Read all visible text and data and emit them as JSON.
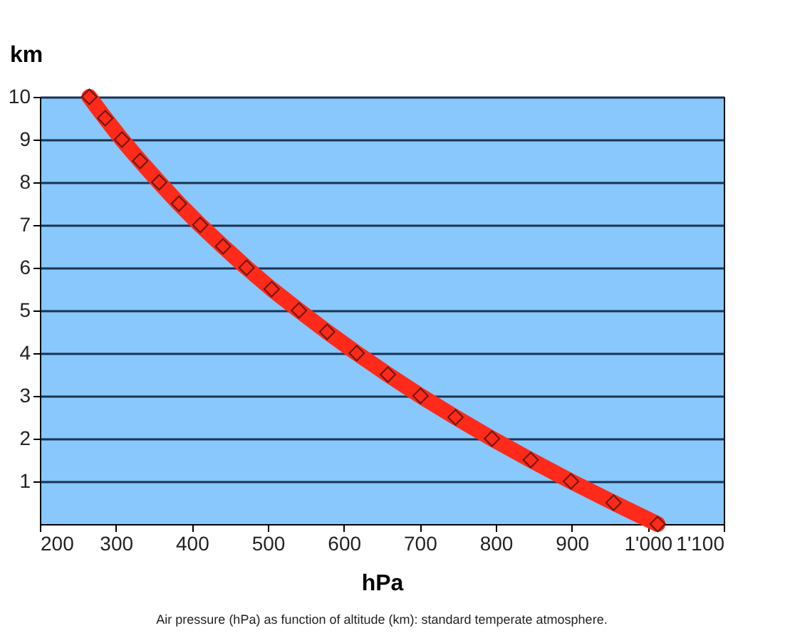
{
  "chart_data": {
    "type": "line",
    "xlabel": "hPa",
    "ylabel": "km",
    "annotations": [
      "Air pressure (hPa) as function of altitude (km): standard temperate atmosphere."
    ],
    "x": [
      1013,
      955,
      899,
      846,
      795,
      747,
      701,
      658,
      617,
      578,
      541,
      505,
      472,
      441,
      411,
      383,
      357,
      332,
      308,
      286,
      265
    ],
    "series": [
      {
        "color": "#ff2a1a",
        "values": [
          0,
          0.5,
          1,
          1.5,
          2,
          2.5,
          3,
          3.5,
          4,
          4.5,
          5,
          5.5,
          6,
          6.5,
          7,
          7.5,
          8,
          8.5,
          9,
          9.5,
          10
        ]
      }
    ],
    "xlim": [
      200,
      1100
    ],
    "ylim": [
      0,
      10
    ],
    "xticks": [
      200,
      300,
      400,
      500,
      600,
      700,
      800,
      900,
      {
        "value": 1000,
        "label": "1'000"
      },
      {
        "value": 1100,
        "label": "1'100"
      }
    ],
    "yticks": [
      1,
      2,
      3,
      4,
      5,
      6,
      7,
      8,
      9,
      10
    ],
    "grid": "y",
    "marker": "diamond",
    "line_style": "solid"
  }
}
